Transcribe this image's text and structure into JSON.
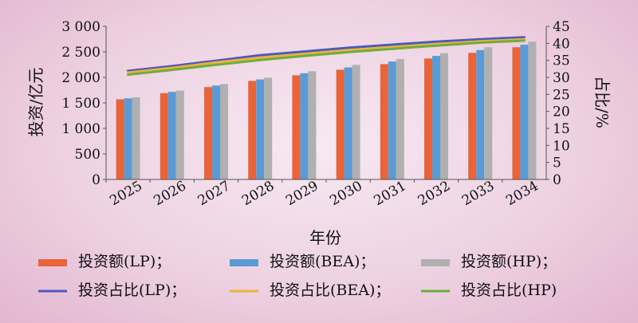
{
  "chart_data": {
    "type": "bar",
    "categories": [
      "2025",
      "2026",
      "2027",
      "2028",
      "2029",
      "2030",
      "2031",
      "2032",
      "2033",
      "2034"
    ],
    "xlabel": "年份",
    "ylabel": "投资/亿元",
    "y2label": "占比/%",
    "ylim": [
      0,
      3000
    ],
    "y2lim": [
      0,
      45
    ],
    "yticks": [
      "0",
      "500",
      "1 000",
      "1 500",
      "2 000",
      "2 500",
      "3 000"
    ],
    "y2ticks": [
      "0",
      "5",
      "10",
      "15",
      "20",
      "25",
      "30",
      "35",
      "40",
      "45"
    ],
    "bar_series": [
      {
        "name": "投资额(LP)；",
        "color": "#e8643a",
        "values": [
          1570,
          1690,
          1810,
          1930,
          2040,
          2150,
          2260,
          2370,
          2480,
          2590
        ]
      },
      {
        "name": "投资额(BEA)；",
        "color": "#5b9bd5",
        "values": [
          1590,
          1715,
          1840,
          1960,
          2080,
          2195,
          2310,
          2420,
          2535,
          2640
        ]
      },
      {
        "name": "投资额(HP)；",
        "color": "#b0b0b0",
        "values": [
          1610,
          1740,
          1870,
          1995,
          2120,
          2245,
          2360,
          2475,
          2590,
          2700
        ]
      }
    ],
    "line_series": [
      {
        "name": "投资占比(LP)；",
        "color": "#4a5bbd",
        "values": [
          31.9,
          33.3,
          34.9,
          36.5,
          37.6,
          38.7,
          39.6,
          40.5,
          41.2,
          41.8
        ]
      },
      {
        "name": "投资占比(BEA)；",
        "color": "#f0b13a",
        "values": [
          31.4,
          32.8,
          34.4,
          35.8,
          36.9,
          38.0,
          38.9,
          39.8,
          40.6,
          41.2
        ]
      },
      {
        "name": "投资占比(HP)",
        "color": "#6cae3e",
        "values": [
          30.8,
          32.2,
          33.7,
          35.1,
          36.3,
          37.4,
          38.4,
          39.3,
          40.2,
          40.8
        ]
      }
    ]
  }
}
